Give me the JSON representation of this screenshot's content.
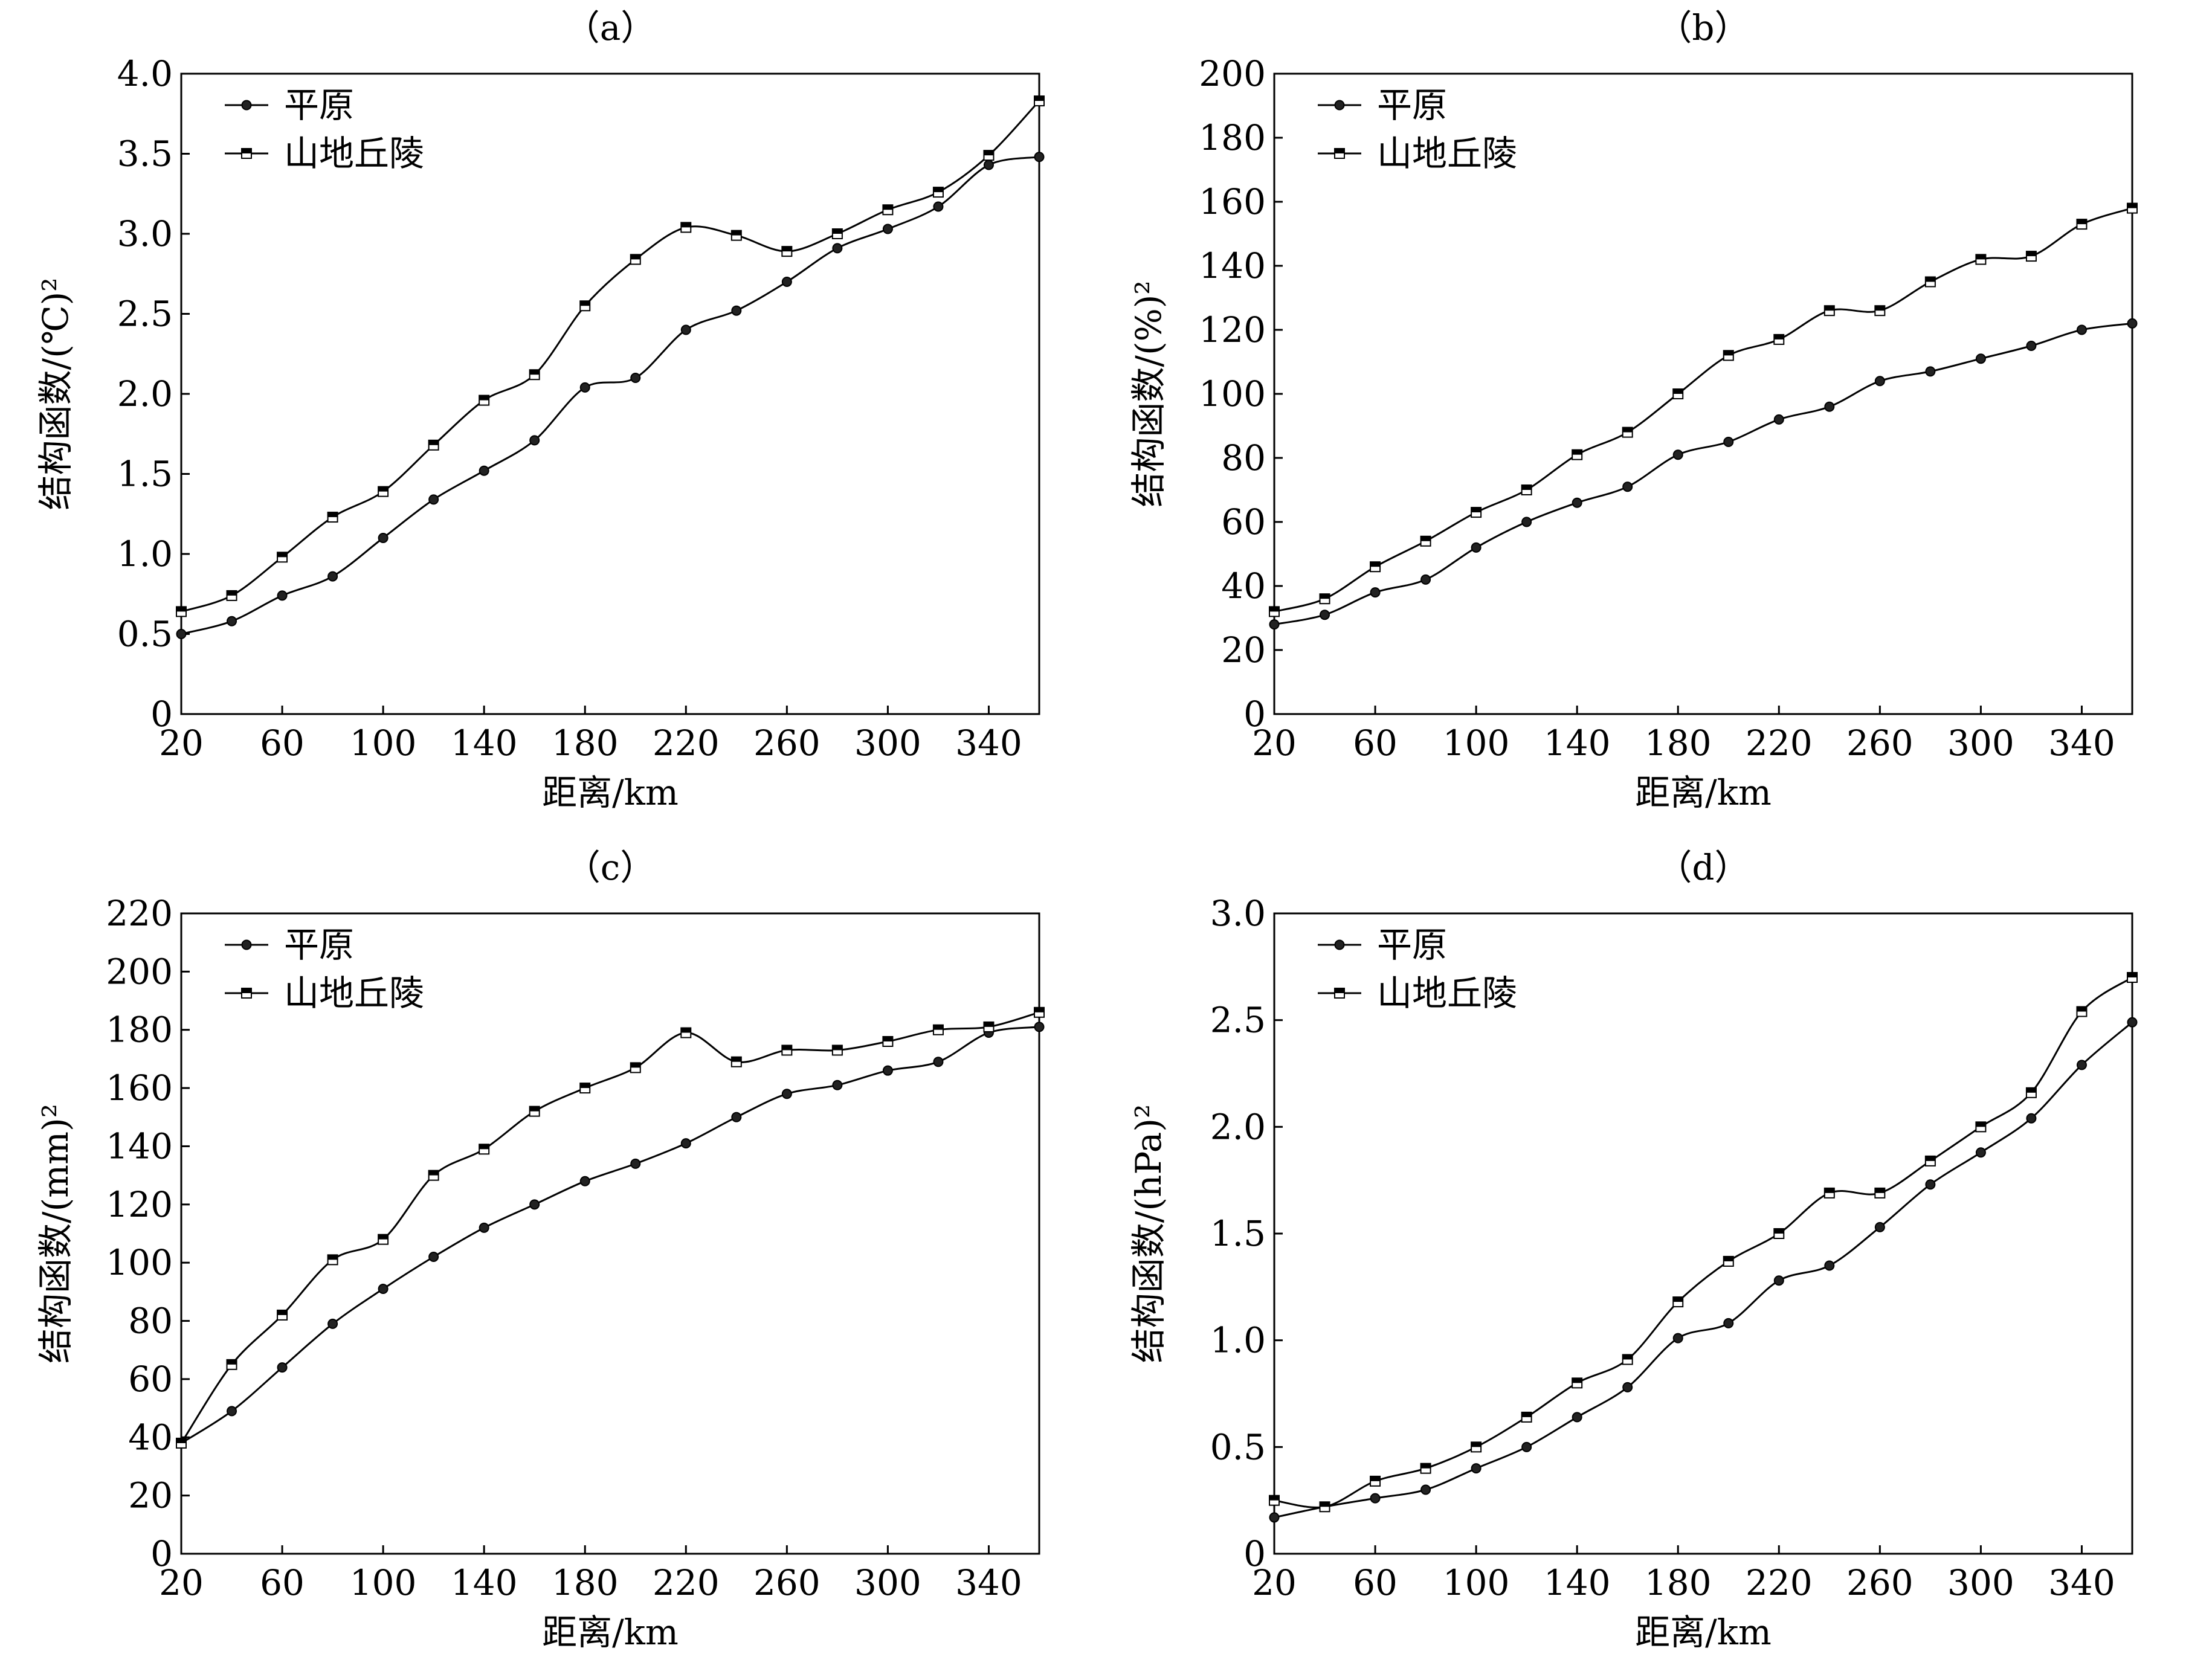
{
  "chart_data": [
    {
      "type": "line",
      "panel_label": "（a）",
      "xlabel": "距离/km",
      "ylabel": "结构函数/(℃)²",
      "xlim": [
        20,
        360
      ],
      "ylim": [
        0,
        4.0
      ],
      "x_ticks": [
        20,
        60,
        100,
        140,
        180,
        220,
        260,
        300,
        340
      ],
      "y_ticks": [
        "0",
        "0.5",
        "1.0",
        "1.5",
        "2.0",
        "2.5",
        "3.0",
        "3.5",
        "4.0"
      ],
      "y_tick_values": [
        0,
        0.5,
        1.0,
        1.5,
        2.0,
        2.5,
        3.0,
        3.5,
        4.0
      ],
      "legend_position": "top-left",
      "grid": false,
      "x": [
        20,
        40,
        60,
        80,
        100,
        120,
        140,
        160,
        180,
        200,
        220,
        240,
        260,
        280,
        300,
        320,
        340,
        360
      ],
      "series": [
        {
          "name": "平原",
          "marker": "circle",
          "values": [
            0.5,
            0.58,
            0.74,
            0.86,
            1.1,
            1.34,
            1.52,
            1.71,
            2.04,
            2.1,
            2.4,
            2.52,
            2.7,
            2.91,
            3.03,
            3.17,
            3.43,
            3.48
          ]
        },
        {
          "name": "山地丘陵",
          "marker": "square",
          "values": [
            0.64,
            0.74,
            0.98,
            1.23,
            1.39,
            1.68,
            1.96,
            2.12,
            2.55,
            2.84,
            3.04,
            2.99,
            2.89,
            3.0,
            3.15,
            3.26,
            3.49,
            3.83
          ]
        }
      ]
    },
    {
      "type": "line",
      "panel_label": "（b）",
      "xlabel": "距离/km",
      "ylabel": "结构函数/(%)²",
      "xlim": [
        20,
        360
      ],
      "ylim": [
        0,
        200
      ],
      "x_ticks": [
        20,
        60,
        100,
        140,
        180,
        220,
        260,
        300,
        340
      ],
      "y_ticks": [
        "0",
        "20",
        "40",
        "60",
        "80",
        "100",
        "120",
        "140",
        "160",
        "180",
        "200"
      ],
      "y_tick_values": [
        0,
        20,
        40,
        60,
        80,
        100,
        120,
        140,
        160,
        180,
        200
      ],
      "legend_position": "top-left",
      "grid": false,
      "x": [
        20,
        40,
        60,
        80,
        100,
        120,
        140,
        160,
        180,
        200,
        220,
        240,
        260,
        280,
        300,
        320,
        340,
        360
      ],
      "series": [
        {
          "name": "平原",
          "marker": "circle",
          "values": [
            28,
            31,
            38,
            42,
            52,
            60,
            66,
            71,
            81,
            85,
            92,
            96,
            104,
            107,
            111,
            115,
            120,
            122
          ]
        },
        {
          "name": "山地丘陵",
          "marker": "square",
          "values": [
            32,
            36,
            46,
            54,
            63,
            70,
            81,
            88,
            100,
            112,
            117,
            126,
            126,
            135,
            142,
            143,
            153,
            158
          ]
        }
      ]
    },
    {
      "type": "line",
      "panel_label": "（c）",
      "xlabel": "距离/km",
      "ylabel": "结构函数/(mm)²",
      "xlim": [
        20,
        360
      ],
      "ylim": [
        0,
        220
      ],
      "x_ticks": [
        20,
        60,
        100,
        140,
        180,
        220,
        260,
        300,
        340
      ],
      "y_ticks": [
        "0",
        "20",
        "40",
        "60",
        "80",
        "100",
        "120",
        "140",
        "160",
        "180",
        "200",
        "220"
      ],
      "y_tick_values": [
        0,
        20,
        40,
        60,
        80,
        100,
        120,
        140,
        160,
        180,
        200,
        220
      ],
      "legend_position": "top-left",
      "grid": false,
      "x": [
        20,
        40,
        60,
        80,
        100,
        120,
        140,
        160,
        180,
        200,
        220,
        240,
        260,
        280,
        300,
        320,
        340,
        360
      ],
      "series": [
        {
          "name": "平原",
          "marker": "circle",
          "values": [
            38,
            49,
            64,
            79,
            91,
            102,
            112,
            120,
            128,
            134,
            141,
            150,
            158,
            161,
            166,
            169,
            179,
            181
          ]
        },
        {
          "name": "山地丘陵",
          "marker": "square",
          "values": [
            38,
            65,
            82,
            101,
            108,
            130,
            139,
            152,
            160,
            167,
            179,
            169,
            173,
            173,
            176,
            180,
            181,
            186
          ]
        }
      ]
    },
    {
      "type": "line",
      "panel_label": "（d）",
      "xlabel": "距离/km",
      "ylabel": "结构函数/(hPa)²",
      "xlim": [
        20,
        360
      ],
      "ylim": [
        0,
        3.0
      ],
      "x_ticks": [
        20,
        60,
        100,
        140,
        180,
        220,
        260,
        300,
        340
      ],
      "y_ticks": [
        "0",
        "0.5",
        "1.0",
        "1.5",
        "2.0",
        "2.5",
        "3.0"
      ],
      "y_tick_values": [
        0,
        0.5,
        1.0,
        1.5,
        2.0,
        2.5,
        3.0
      ],
      "legend_position": "top-left",
      "grid": false,
      "x": [
        20,
        40,
        60,
        80,
        100,
        120,
        140,
        160,
        180,
        200,
        220,
        240,
        260,
        280,
        300,
        320,
        340,
        360
      ],
      "series": [
        {
          "name": "平原",
          "marker": "circle",
          "values": [
            0.17,
            0.22,
            0.26,
            0.3,
            0.4,
            0.5,
            0.64,
            0.78,
            1.01,
            1.08,
            1.28,
            1.35,
            1.53,
            1.73,
            1.88,
            2.04,
            2.29,
            2.49
          ]
        },
        {
          "name": "山地丘陵",
          "marker": "square",
          "values": [
            0.25,
            0.22,
            0.34,
            0.4,
            0.5,
            0.64,
            0.8,
            0.91,
            1.18,
            1.37,
            1.5,
            1.69,
            1.69,
            1.84,
            2.0,
            2.16,
            2.54,
            2.7
          ]
        }
      ]
    }
  ]
}
